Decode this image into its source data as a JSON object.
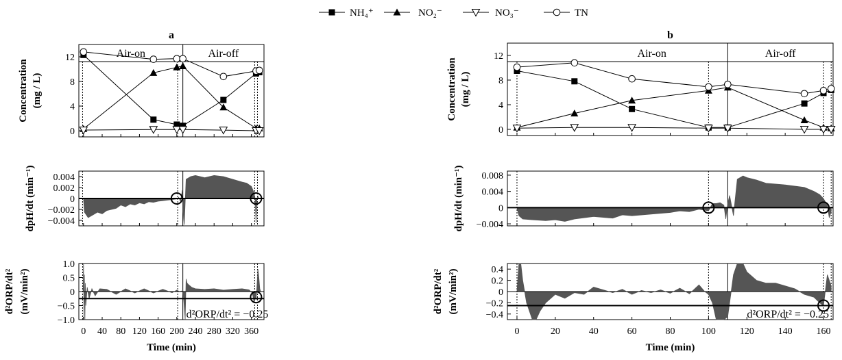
{
  "legend": [
    {
      "label": "NH₄⁺",
      "marker": "square-filled"
    },
    {
      "label": "NO₂⁻",
      "marker": "triangle-filled"
    },
    {
      "label": "NO₃⁻",
      "marker": "triangle-down-open"
    },
    {
      "label": "TN",
      "marker": "circle-open"
    }
  ],
  "chart_data": [
    {
      "type": "line",
      "panel": "a",
      "title": "a",
      "xlabel": "Time (min)",
      "xlim": [
        -10,
        387
      ],
      "xticks": [
        0,
        40,
        80,
        120,
        160,
        200,
        240,
        280,
        320,
        360
      ],
      "phase_divider": 213,
      "event_lines": [
        -2,
        202,
        367,
        373
      ],
      "phase_labels": [
        "Air-on",
        "Air-off"
      ],
      "subplots": [
        {
          "kind": "concentration",
          "ylabel_line1": "Concentration",
          "ylabel_line2": "(mg / L)",
          "ylim": [
            -1,
            14
          ],
          "yticks": [
            0,
            4,
            8,
            12
          ],
          "series": [
            {
              "name": "NH₄⁺",
              "marker": "square-filled",
              "x": [
                0,
                150,
                200,
                213,
                300,
                370,
                377
              ],
              "y": [
                12.3,
                1.8,
                1.0,
                0.8,
                5.0,
                9.3,
                9.5
              ]
            },
            {
              "name": "NO₂⁻",
              "marker": "triangle-filled",
              "x": [
                0,
                150,
                200,
                213,
                300,
                370,
                377
              ],
              "y": [
                0.3,
                9.4,
                10.3,
                10.5,
                3.8,
                0.4,
                0.4
              ]
            },
            {
              "name": "NO₃⁻",
              "marker": "triangle-down-open",
              "x": [
                0,
                150,
                200,
                213,
                300,
                370,
                377
              ],
              "y": [
                0.1,
                0.2,
                0.2,
                0.2,
                0.1,
                0.0,
                0.0
              ]
            },
            {
              "name": "TN",
              "marker": "circle-open",
              "x": [
                0,
                150,
                200,
                213,
                300,
                370,
                377
              ],
              "y": [
                12.8,
                11.6,
                11.7,
                11.7,
                8.8,
                9.7,
                9.8
              ]
            }
          ]
        },
        {
          "kind": "dpH",
          "ylabel": "dpH/dt (min⁻¹)",
          "ylim": [
            -0.005,
            0.005
          ],
          "yticks": [
            -0.004,
            -0.002,
            0,
            0.002,
            0.004
          ],
          "ytick_labels": [
            "-0.004",
            "-0.002",
            "0",
            "0.002",
            "0.004"
          ],
          "reference_y": 0,
          "markers_circle": [
            {
              "x": 200,
              "y": 0
            },
            {
              "x": 370,
              "y": 0
            }
          ],
          "area_x": [
            0,
            2,
            10,
            20,
            30,
            40,
            50,
            60,
            70,
            80,
            90,
            100,
            110,
            120,
            130,
            140,
            150,
            160,
            170,
            180,
            190,
            200,
            204,
            208,
            212,
            213,
            216,
            220,
            230,
            240,
            260,
            280,
            300,
            320,
            340,
            350,
            360,
            365,
            368,
            370,
            372,
            374,
            376
          ],
          "area_y": [
            0,
            -0.0025,
            -0.0035,
            -0.003,
            -0.0025,
            -0.0028,
            -0.0022,
            -0.002,
            -0.0018,
            -0.0012,
            -0.0015,
            -0.001,
            -0.0012,
            -0.0008,
            -0.001,
            -0.0006,
            -0.0007,
            -0.0005,
            -0.0004,
            -0.0003,
            -0.0002,
            -0.0001,
            0.0002,
            -0.0005,
            0.0015,
            -0.002,
            -0.0048,
            0.0035,
            0.004,
            0.0042,
            0.0038,
            0.0042,
            0.004,
            0.0035,
            0.003,
            0.0028,
            0.0022,
            0.0012,
            0.0,
            -0.0045,
            0.0,
            0.0004,
            0.0
          ]
        },
        {
          "kind": "d2ORP",
          "ylabel_line1": "d²ORP/dt²",
          "ylabel_line2": "(mV/min²)",
          "ylim": [
            -1.0,
            1.0
          ],
          "yticks": [
            -1.0,
            -0.5,
            0,
            0.5,
            1.0
          ],
          "ytick_labels": [
            "-1.0",
            "-0.5",
            "0",
            "0.5",
            "1.0"
          ],
          "threshold": -0.25,
          "threshold_label": "d²ORP/dt² = −0.25",
          "markers_circle": [
            {
              "x": 370,
              "y": -0.2
            }
          ],
          "area_x": [
            -1,
            0,
            1,
            2,
            3,
            4,
            5,
            8,
            12,
            18,
            25,
            35,
            50,
            70,
            90,
            110,
            130,
            150,
            170,
            190,
            200,
            206,
            210,
            213,
            215,
            218,
            220,
            222,
            225,
            232,
            240,
            260,
            280,
            300,
            320,
            340,
            355,
            362,
            366,
            368,
            370,
            372,
            374,
            376,
            378,
            380
          ],
          "area_y": [
            0,
            1.0,
            -1.0,
            0.6,
            -1.0,
            0.3,
            -0.5,
            0.15,
            -0.25,
            0.1,
            -0.15,
            0.1,
            0.08,
            -0.1,
            0.1,
            -0.05,
            0.1,
            -0.05,
            0.08,
            -0.04,
            0.05,
            0.0,
            0.02,
            0.0,
            -0.3,
            -1.0,
            0.45,
            0.3,
            0.25,
            0.15,
            0.1,
            0.08,
            0.1,
            0.05,
            0.08,
            0.1,
            0.06,
            -0.05,
            -0.4,
            -0.2,
            -0.3,
            0.2,
            0.8,
            0.5,
            0.1,
            0.0
          ]
        }
      ]
    },
    {
      "type": "line",
      "panel": "b",
      "title": "b",
      "xlabel": "Time (min)",
      "xlim": [
        -5,
        165
      ],
      "xticks": [
        0,
        20,
        40,
        60,
        80,
        100,
        120,
        140,
        160
      ],
      "phase_divider": 110,
      "event_lines": [
        0,
        100,
        160,
        164
      ],
      "phase_labels": [
        "Air-on",
        "Air-off"
      ],
      "subplots": [
        {
          "kind": "concentration",
          "ylabel_line1": "Concentration",
          "ylabel_line2": "(mg / L)",
          "ylim": [
            -1,
            14
          ],
          "yticks": [
            0,
            4,
            8,
            12
          ],
          "series": [
            {
              "name": "NH₄⁺",
              "marker": "square-filled",
              "x": [
                0,
                30,
                60,
                100,
                110,
                150,
                160,
                164
              ],
              "y": [
                9.5,
                7.8,
                3.3,
                0.3,
                0.3,
                4.2,
                5.9,
                6.4
              ]
            },
            {
              "name": "NO₂⁻",
              "marker": "triangle-filled",
              "x": [
                0,
                30,
                60,
                100,
                110,
                150,
                160,
                164
              ],
              "y": [
                0.3,
                2.6,
                4.7,
                6.3,
                6.8,
                1.5,
                0.3,
                0.2
              ]
            },
            {
              "name": "NO₃⁻",
              "marker": "triangle-down-open",
              "x": [
                0,
                30,
                60,
                100,
                110,
                150,
                160,
                164
              ],
              "y": [
                0.2,
                0.3,
                0.3,
                0.2,
                0.2,
                0.0,
                0.0,
                0.0
              ]
            },
            {
              "name": "TN",
              "marker": "circle-open",
              "x": [
                0,
                30,
                60,
                100,
                110,
                150,
                160,
                164
              ],
              "y": [
                10.1,
                10.8,
                8.2,
                6.9,
                7.3,
                5.8,
                6.3,
                6.6
              ]
            }
          ]
        },
        {
          "kind": "dpH",
          "ylabel": "dpH/dt (min⁻¹)",
          "ylim": [
            -0.0045,
            0.009
          ],
          "yticks": [
            -0.004,
            0,
            0.004,
            0.008
          ],
          "ytick_labels": [
            "-0.004",
            "0",
            "0.004",
            "0.008"
          ],
          "reference_y": 0,
          "markers_circle": [
            {
              "x": 100,
              "y": 0
            },
            {
              "x": 160,
              "y": 0
            }
          ],
          "area_x": [
            0,
            1,
            3,
            8,
            15,
            20,
            25,
            30,
            40,
            50,
            55,
            60,
            70,
            80,
            85,
            90,
            95,
            100,
            102,
            104,
            106,
            108,
            109,
            110,
            111,
            113,
            115,
            118,
            120,
            125,
            130,
            140,
            150,
            155,
            158,
            160,
            162,
            163,
            164
          ],
          "area_y": [
            0,
            -0.002,
            -0.0028,
            -0.003,
            -0.0032,
            -0.003,
            -0.0034,
            -0.0028,
            -0.0022,
            -0.0026,
            -0.0018,
            -0.002,
            -0.0016,
            -0.0012,
            -0.0008,
            -0.001,
            -0.0004,
            -0.0008,
            0.001,
            0.001,
            0.0012,
            0.0006,
            -0.0028,
            0.001,
            0.003,
            -0.002,
            0.007,
            0.0078,
            0.0074,
            0.0068,
            0.006,
            0.0056,
            0.005,
            0.004,
            0.0032,
            0.0022,
            0.0006,
            -0.0025,
            -0.001
          ]
        },
        {
          "kind": "d2ORP",
          "ylabel_line1": "d²ORP/dt²",
          "ylabel_line2": "(mV/min²)",
          "ylim": [
            -0.5,
            0.5
          ],
          "yticks": [
            -0.4,
            -0.2,
            0,
            0.2,
            0.4
          ],
          "ytick_labels": [
            "-0.4",
            "-0.2",
            "0",
            "0.2",
            "0.4"
          ],
          "threshold": -0.25,
          "threshold_label": "d²ORP/dt² = −0.25",
          "markers_circle": [
            {
              "x": 160,
              "y": -0.25
            }
          ],
          "area_x": [
            0,
            1,
            2,
            3,
            5,
            8,
            10,
            12,
            15,
            20,
            25,
            30,
            35,
            40,
            45,
            50,
            55,
            60,
            65,
            70,
            75,
            80,
            85,
            90,
            95,
            98,
            100,
            102,
            104,
            106,
            108,
            110,
            112,
            113,
            115,
            118,
            120,
            125,
            130,
            135,
            140,
            145,
            150,
            155,
            158,
            160,
            162,
            164
          ],
          "area_y": [
            0,
            0.5,
            0.5,
            0.2,
            -0.2,
            -0.5,
            -0.5,
            -0.35,
            -0.2,
            -0.05,
            -0.12,
            -0.02,
            -0.05,
            0.08,
            0.03,
            -0.02,
            0.04,
            -0.05,
            0.02,
            -0.02,
            0.03,
            -0.03,
            0.06,
            -0.04,
            0.12,
            0.0,
            -0.05,
            -0.2,
            -0.5,
            -0.5,
            -0.5,
            -0.45,
            0.05,
            0.3,
            0.5,
            0.5,
            0.35,
            0.2,
            0.15,
            0.15,
            0.1,
            0.05,
            -0.05,
            -0.1,
            -0.2,
            -0.25,
            0.3,
            0.1
          ]
        }
      ]
    }
  ]
}
